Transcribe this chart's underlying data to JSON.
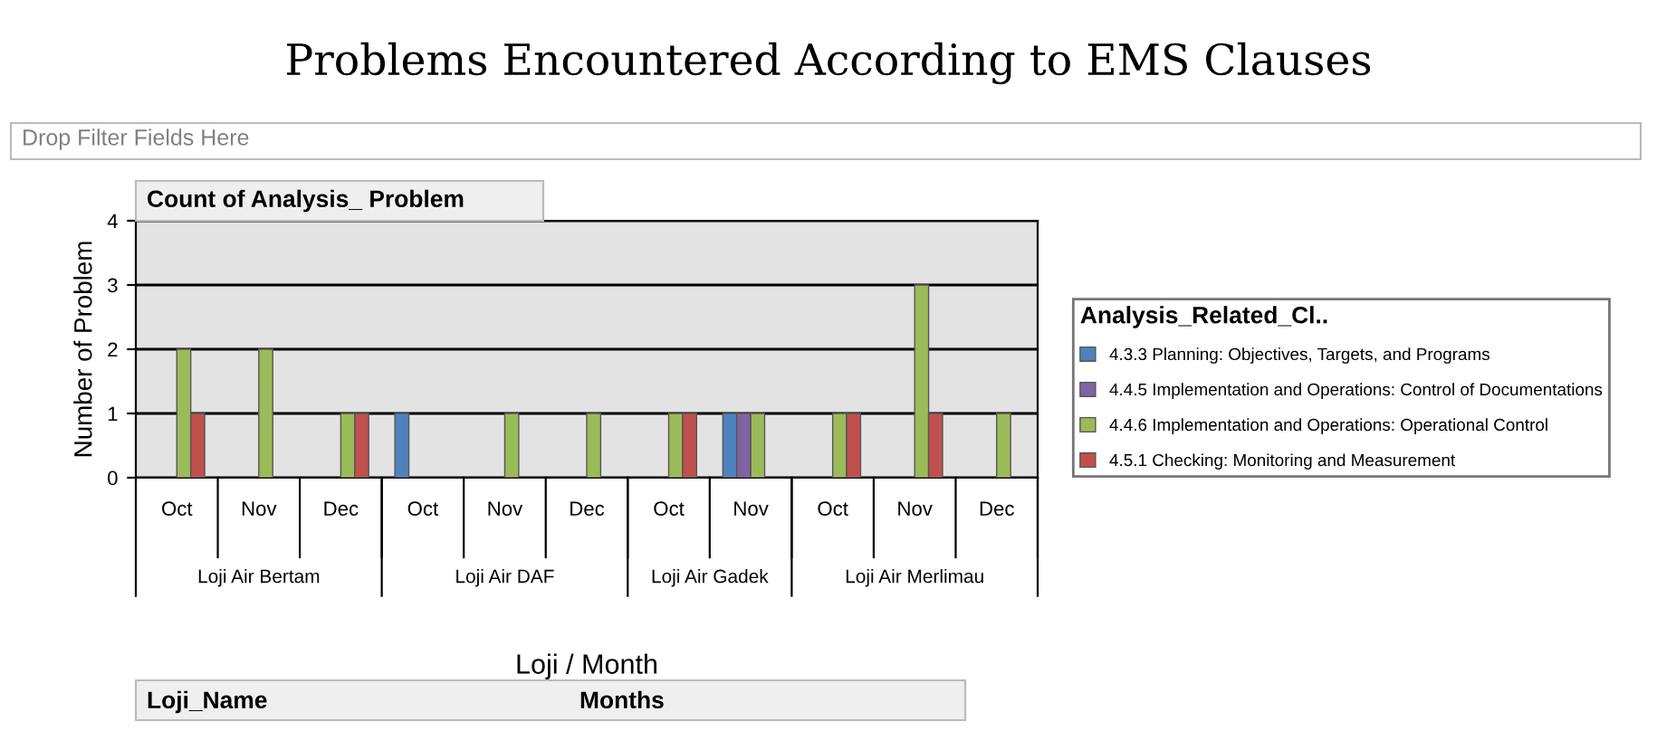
{
  "chart_data": {
    "type": "bar",
    "title": "Problems Encountered According to EMS Clauses",
    "categories": [
      "Oct",
      "Nov",
      "Dec",
      "Oct",
      "Nov",
      "Dec",
      "Oct",
      "Nov",
      "Oct",
      "Nov",
      "Dec"
    ],
    "series": [
      {
        "name": "4.3.3 Planning: Objectives, Targets, and Programs",
        "color": "#4f81bd",
        "values": [
          null,
          null,
          null,
          1,
          null,
          null,
          null,
          1,
          null,
          null,
          null
        ]
      },
      {
        "name": "4.4.5 Implementation and Operations: Control of Documentations",
        "color": "#8064a2",
        "values": [
          null,
          null,
          null,
          null,
          null,
          null,
          null,
          1,
          null,
          null,
          null
        ]
      },
      {
        "name": "4.4.6 Implementation and Operations: Operational Control",
        "color": "#9bbb59",
        "values": [
          2,
          2,
          1,
          null,
          1,
          1,
          1,
          1,
          1,
          3,
          1
        ]
      },
      {
        "name": "4.5.1 Checking: Monitoring and Measurement",
        "color": "#c0504d",
        "values": [
          1,
          null,
          1,
          null,
          null,
          null,
          1,
          null,
          1,
          1,
          null
        ]
      }
    ],
    "ylim": [
      0,
      4
    ],
    "yticks": [
      0,
      1,
      2,
      3,
      4
    ],
    "grid": "y",
    "legend": "right",
    "legend_title": "Analysis_Related_Cl..",
    "xlabel": "Loji / Month",
    "ylabel": "Number of Problem",
    "annotations": [
      "Drop Filter Fields Here",
      "Count of Analysis_ Problem",
      "Loji Air Bertam",
      "Loji Air DAF",
      "Loji Air Gadek",
      "Loji Air Merlimau",
      "Loji_Name",
      "Months"
    ]
  }
}
